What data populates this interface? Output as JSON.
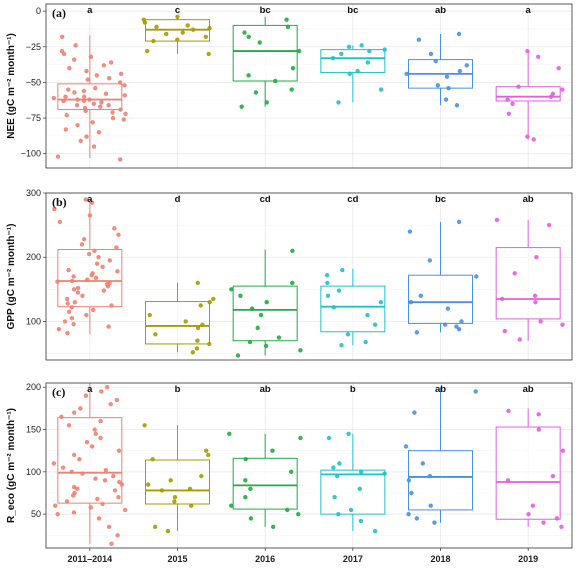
{
  "chart_data": [
    {
      "type": "box",
      "panel_label": "(a)",
      "ylabel": "NEE (gC m⁻² month⁻¹)",
      "ylim": [
        -110,
        5
      ],
      "yticks": [
        0,
        -25,
        -50,
        -75,
        -100
      ],
      "categories": [
        "2011–2014",
        "2015",
        "2016",
        "2017",
        "2018",
        "2019"
      ],
      "colors": [
        "#f08070",
        "#a89a00",
        "#22aa44",
        "#22c0c8",
        "#4a90e0",
        "#e060e0"
      ],
      "letters": [
        "a",
        "c",
        "bc",
        "bc",
        "ab",
        "a"
      ],
      "boxes": [
        {
          "q1": -69,
          "median": -62,
          "q3": -51,
          "whisker_low": -103,
          "whisker_high": -17
        },
        {
          "q1": -21,
          "median": -13,
          "q3": -6,
          "whisker_low": -30,
          "whisker_high": -4
        },
        {
          "q1": -49,
          "median": -28,
          "q3": -10,
          "whisker_low": -67,
          "whisker_high": -4
        },
        {
          "q1": -43,
          "median": -33,
          "q3": -27,
          "whisker_low": -64,
          "whisker_high": -24
        },
        {
          "q1": -54,
          "median": -44,
          "q3": -34,
          "whisker_low": -66,
          "whisker_high": -16
        },
        {
          "q1": -63,
          "median": -60,
          "q3": -53,
          "whisker_low": -90,
          "whisker_high": -28
        }
      ],
      "points": [
        [
          -104,
          -102,
          -95,
          -91,
          -88,
          -85,
          -83,
          -80,
          -78,
          -76,
          -75,
          -73,
          -72,
          -71,
          -70,
          -69,
          -68,
          -67,
          -66,
          -66,
          -65,
          -64,
          -63,
          -63,
          -62,
          -62,
          -61,
          -60,
          -60,
          -59,
          -58,
          -57,
          -56,
          -55,
          -54,
          -52,
          -50,
          -48,
          -47,
          -45,
          -44,
          -42,
          -40,
          -38,
          -36,
          -34,
          -32,
          -30,
          -28,
          -24,
          -18
        ],
        [
          -30,
          -28,
          -21,
          -20,
          -18,
          -16,
          -15,
          -13,
          -12,
          -11,
          -10,
          -8,
          -6,
          -4
        ],
        [
          -67,
          -64,
          -57,
          -55,
          -49,
          -45,
          -40,
          -28,
          -22,
          -18,
          -15,
          -11,
          -6
        ],
        [
          -64,
          -55,
          -44,
          -42,
          -36,
          -33,
          -30,
          -28,
          -27,
          -25,
          -24
        ],
        [
          -66,
          -62,
          -54,
          -52,
          -46,
          -44,
          -42,
          -38,
          -35,
          -30,
          -20,
          -16
        ],
        [
          -90,
          -88,
          -72,
          -65,
          -62,
          -60,
          -58,
          -55,
          -53,
          -40,
          -32,
          -28
        ]
      ]
    },
    {
      "type": "box",
      "panel_label": "(b)",
      "ylabel": "GPP (gC m⁻² month⁻¹)",
      "ylim": [
        40,
        300
      ],
      "yticks": [
        100,
        200,
        300
      ],
      "categories": [
        "2011–2014",
        "2015",
        "2016",
        "2017",
        "2018",
        "2019"
      ],
      "colors": [
        "#f08070",
        "#a89a00",
        "#22aa44",
        "#22c0c8",
        "#4a90e0",
        "#e060e0"
      ],
      "letters": [
        "a",
        "d",
        "cd",
        "cd",
        "bc",
        "ab"
      ],
      "boxes": [
        {
          "q1": 123,
          "median": 163,
          "q3": 212,
          "whisker_low": 80,
          "whisker_high": 290
        },
        {
          "q1": 65,
          "median": 93,
          "q3": 131,
          "whisker_low": 52,
          "whisker_high": 160
        },
        {
          "q1": 70,
          "median": 118,
          "q3": 155,
          "whisker_low": 47,
          "whisker_high": 212
        },
        {
          "q1": 84,
          "median": 123,
          "q3": 155,
          "whisker_low": 63,
          "whisker_high": 182
        },
        {
          "q1": 97,
          "median": 130,
          "q3": 172,
          "whisker_low": 83,
          "whisker_high": 255
        },
        {
          "q1": 104,
          "median": 135,
          "q3": 215,
          "whisker_low": 70,
          "whisker_high": 258
        }
      ],
      "points": [
        [
          82,
          88,
          92,
          96,
          100,
          105,
          110,
          115,
          118,
          122,
          125,
          128,
          130,
          135,
          140,
          145,
          148,
          150,
          152,
          155,
          158,
          160,
          162,
          163,
          165,
          168,
          170,
          172,
          175,
          178,
          180,
          185,
          190,
          195,
          200,
          205,
          210,
          215,
          220,
          228,
          235,
          245,
          255,
          265,
          275,
          285,
          290
        ],
        [
          52,
          58,
          65,
          70,
          80,
          90,
          95,
          100,
          110,
          125,
          130,
          135,
          160
        ],
        [
          47,
          55,
          62,
          68,
          75,
          90,
          110,
          120,
          130,
          140,
          150,
          160,
          210
        ],
        [
          63,
          68,
          80,
          95,
          110,
          122,
          130,
          140,
          148,
          160,
          172,
          180
        ],
        [
          83,
          88,
          92,
          95,
          100,
          120,
          130,
          140,
          170,
          195,
          240,
          255
        ],
        [
          72,
          85,
          95,
          100,
          130,
          135,
          140,
          175,
          200,
          250,
          258
        ]
      ]
    },
    {
      "type": "box",
      "panel_label": "(c)",
      "ylabel": "R_eco (gC m⁻² month⁻¹)",
      "ylim": [
        10,
        205
      ],
      "yticks": [
        50,
        100,
        150,
        200
      ],
      "categories": [
        "2011–2014",
        "2015",
        "2016",
        "2017",
        "2018",
        "2019"
      ],
      "colors": [
        "#f08070",
        "#a89a00",
        "#22aa44",
        "#22c0c8",
        "#4a90e0",
        "#e060e0"
      ],
      "letters": [
        "a",
        "b",
        "ab",
        "b",
        "ab",
        "ab"
      ],
      "boxes": [
        {
          "q1": 63,
          "median": 99,
          "q3": 164,
          "whisker_low": 15,
          "whisker_high": 210
        },
        {
          "q1": 62,
          "median": 78,
          "q3": 114,
          "whisker_low": 30,
          "whisker_high": 155
        },
        {
          "q1": 56,
          "median": 84,
          "q3": 116,
          "whisker_low": 35,
          "whisker_high": 145
        },
        {
          "q1": 50,
          "median": 97,
          "q3": 102,
          "whisker_low": 30,
          "whisker_high": 145
        },
        {
          "q1": 55,
          "median": 94,
          "q3": 125,
          "whisker_low": 40,
          "whisker_high": 200
        },
        {
          "q1": 44,
          "median": 88,
          "q3": 153,
          "whisker_low": 35,
          "whisker_high": 175
        }
      ],
      "points": [
        [
          15,
          25,
          35,
          45,
          50,
          52,
          55,
          58,
          60,
          62,
          65,
          68,
          70,
          72,
          75,
          78,
          80,
          82,
          85,
          88,
          90,
          92,
          95,
          98,
          100,
          102,
          105,
          110,
          115,
          120,
          125,
          130,
          135,
          140,
          145,
          150,
          155,
          160,
          165,
          170,
          175,
          180,
          185,
          190,
          195,
          200
        ],
        [
          30,
          35,
          60,
          65,
          70,
          78,
          80,
          85,
          90,
          95,
          115,
          120,
          125,
          155
        ],
        [
          35,
          45,
          50,
          55,
          60,
          70,
          80,
          90,
          100,
          115,
          125,
          140,
          145
        ],
        [
          30,
          42,
          50,
          55,
          70,
          80,
          95,
          98,
          100,
          105,
          110,
          140,
          145
        ],
        [
          40,
          45,
          50,
          60,
          75,
          90,
          95,
          110,
          130,
          170,
          195
        ],
        [
          35,
          40,
          45,
          50,
          60,
          90,
          95,
          125,
          150,
          168,
          172
        ]
      ]
    }
  ]
}
